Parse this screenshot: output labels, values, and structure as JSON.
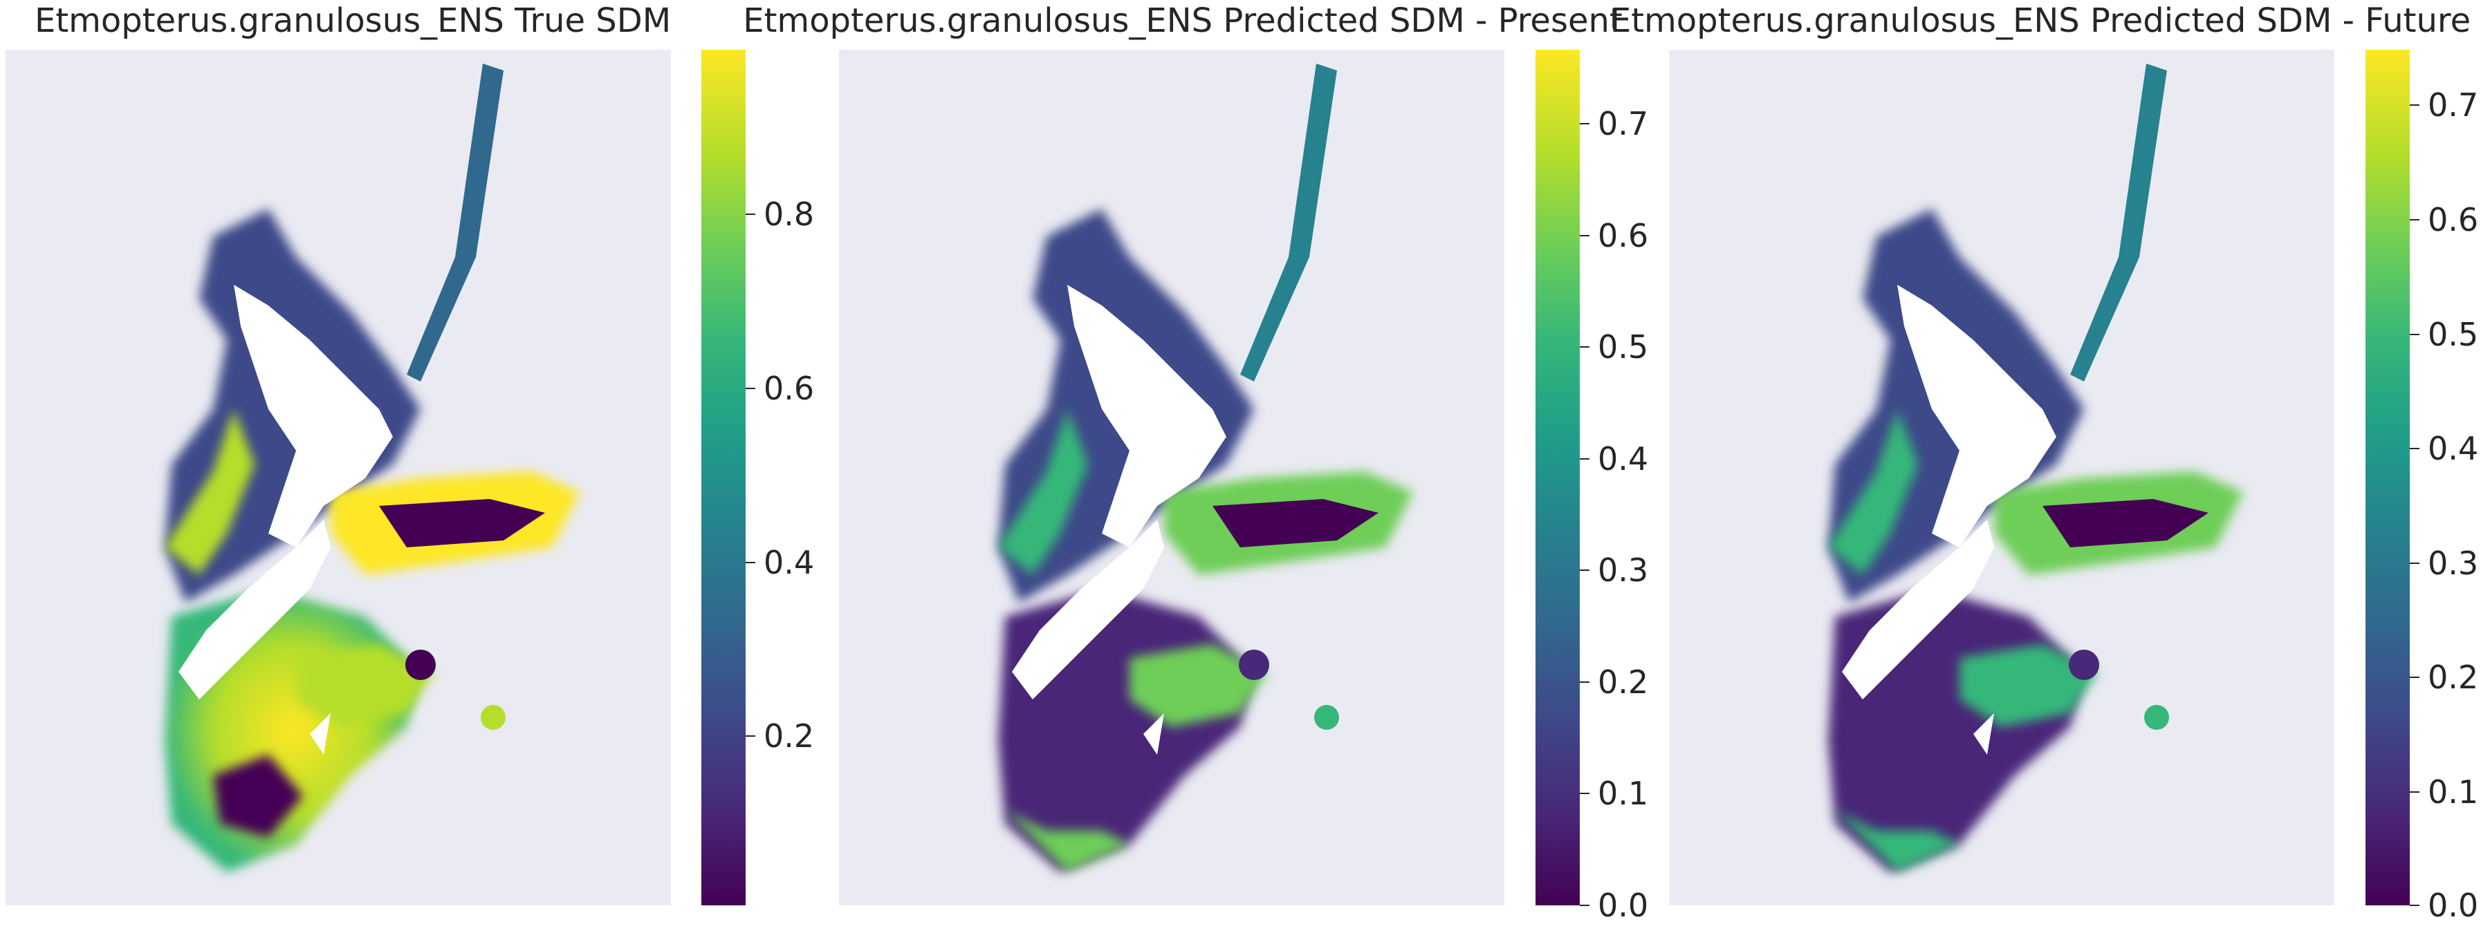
{
  "chart_data": [
    {
      "type": "heatmap",
      "title": "Etmopterus.granulosus_ENS True SDM",
      "colormap": "viridis",
      "colorbar": {
        "min": 0.0,
        "max": 0.98,
        "ticks": [
          0.2,
          0.4,
          0.6,
          0.8
        ]
      },
      "grid": false
    },
    {
      "type": "heatmap",
      "title": "Etmopterus.granulosus_ENS Predicted SDM - Present",
      "colormap": "viridis",
      "colorbar": {
        "min": 0.0,
        "max": 0.77,
        "ticks": [
          0.0,
          0.1,
          0.2,
          0.3,
          0.4,
          0.5,
          0.6,
          0.7
        ]
      },
      "grid": false
    },
    {
      "type": "heatmap",
      "title": "Etmopterus.granulosus_ENS Predicted SDM - Future",
      "colormap": "viridis",
      "colorbar": {
        "min": 0.0,
        "max": 0.745,
        "ticks": [
          0.0,
          0.1,
          0.2,
          0.3,
          0.4,
          0.5,
          0.6,
          0.7
        ]
      },
      "grid": false
    }
  ],
  "colors": {
    "axes_background": "#eaeaf2",
    "land": "#ffffff",
    "viridis_low": "#440154",
    "viridis_mid": "#21918c",
    "viridis_high": "#fde725"
  }
}
